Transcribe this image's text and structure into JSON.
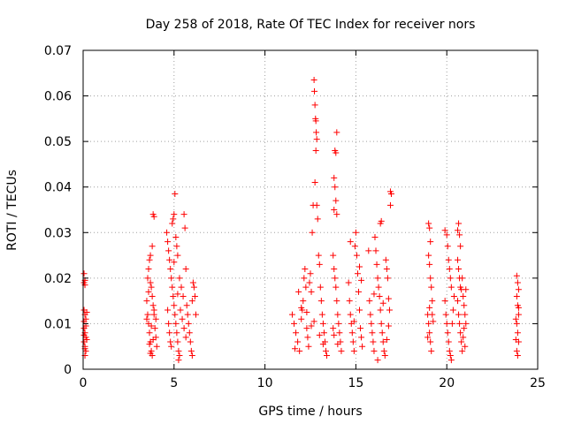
{
  "chart_data": {
    "type": "scatter",
    "title": "Day 258 of 2018, Rate Of TEC Index for receiver nors",
    "xlabel": "GPS time / hours",
    "ylabel": "ROTI / TECUs",
    "xlim": [
      0,
      25
    ],
    "ylim": [
      0,
      0.07
    ],
    "x_ticks": [
      0,
      5,
      10,
      15,
      20,
      25
    ],
    "y_ticks": [
      0,
      0.01,
      0.02,
      0.03,
      0.04,
      0.05,
      0.06,
      0.07
    ],
    "x_tick_labels": [
      "0",
      "5",
      "10",
      "15",
      "20",
      "25"
    ],
    "y_tick_labels": [
      "0",
      "0.01",
      "0.02",
      "0.03",
      "0.04",
      "0.05",
      "0.06",
      "0.07"
    ],
    "grid": true,
    "marker": "+",
    "marker_color": "#ff0000",
    "series": [
      {
        "name": "ROTI",
        "points": [
          [
            0.05,
            0.021
          ],
          [
            0.05,
            0.019
          ],
          [
            0.1,
            0.0195
          ],
          [
            0.1,
            0.0185
          ],
          [
            0.05,
            0.013
          ],
          [
            0.1,
            0.012
          ],
          [
            0.15,
            0.011
          ],
          [
            0.05,
            0.009
          ],
          [
            0.1,
            0.008
          ],
          [
            0.15,
            0.007
          ],
          [
            0.05,
            0.006
          ],
          [
            0.1,
            0.005
          ],
          [
            0.15,
            0.004
          ],
          [
            0.1,
            0.003
          ],
          [
            0.05,
            0.0105
          ],
          [
            0.2,
            0.0125
          ],
          [
            0.15,
            0.0095
          ],
          [
            0.2,
            0.0065
          ],
          [
            0.05,
            0.0075
          ],
          [
            0.1,
            0.0045
          ],
          [
            3.5,
            0.015
          ],
          [
            3.55,
            0.012
          ],
          [
            3.6,
            0.01
          ],
          [
            3.65,
            0.008
          ],
          [
            3.7,
            0.006
          ],
          [
            3.75,
            0.004
          ],
          [
            3.8,
            0.003
          ],
          [
            3.55,
            0.02
          ],
          [
            3.6,
            0.022
          ],
          [
            3.65,
            0.024
          ],
          [
            3.7,
            0.025
          ],
          [
            3.75,
            0.018
          ],
          [
            3.8,
            0.016
          ],
          [
            3.85,
            0.014
          ],
          [
            3.9,
            0.012
          ],
          [
            3.85,
            0.034
          ],
          [
            3.9,
            0.0335
          ],
          [
            3.8,
            0.027
          ],
          [
            3.7,
            0.019
          ],
          [
            3.6,
            0.017
          ],
          [
            3.95,
            0.009
          ],
          [
            4.0,
            0.007
          ],
          [
            4.05,
            0.005
          ],
          [
            3.5,
            0.011
          ],
          [
            3.9,
            0.013
          ],
          [
            4.0,
            0.011
          ],
          [
            3.75,
            0.0095
          ],
          [
            3.65,
            0.0055
          ],
          [
            3.85,
            0.0065
          ],
          [
            3.7,
            0.0035
          ],
          [
            4.6,
            0.03
          ],
          [
            4.65,
            0.028
          ],
          [
            4.7,
            0.026
          ],
          [
            4.75,
            0.024
          ],
          [
            4.8,
            0.022
          ],
          [
            4.85,
            0.02
          ],
          [
            4.9,
            0.018
          ],
          [
            4.95,
            0.016
          ],
          [
            5.0,
            0.014
          ],
          [
            5.05,
            0.012
          ],
          [
            5.1,
            0.01
          ],
          [
            5.15,
            0.008
          ],
          [
            5.2,
            0.006
          ],
          [
            5.25,
            0.004
          ],
          [
            5.3,
            0.003
          ],
          [
            4.9,
            0.032
          ],
          [
            4.95,
            0.033
          ],
          [
            5.0,
            0.034
          ],
          [
            5.05,
            0.0385
          ],
          [
            5.1,
            0.029
          ],
          [
            5.15,
            0.027
          ],
          [
            5.2,
            0.025
          ],
          [
            5.3,
            0.02
          ],
          [
            5.4,
            0.018
          ],
          [
            5.5,
            0.016
          ],
          [
            5.55,
            0.034
          ],
          [
            5.6,
            0.031
          ],
          [
            5.65,
            0.022
          ],
          [
            5.7,
            0.014
          ],
          [
            5.75,
            0.012
          ],
          [
            5.8,
            0.01
          ],
          [
            5.85,
            0.008
          ],
          [
            5.9,
            0.006
          ],
          [
            5.95,
            0.004
          ],
          [
            6.0,
            0.003
          ],
          [
            6.05,
            0.019
          ],
          [
            6.1,
            0.018
          ],
          [
            6.15,
            0.016
          ],
          [
            6.2,
            0.012
          ],
          [
            6.0,
            0.015
          ],
          [
            4.7,
            0.01
          ],
          [
            4.75,
            0.008
          ],
          [
            4.8,
            0.006
          ],
          [
            4.85,
            0.005
          ],
          [
            5.35,
            0.013
          ],
          [
            5.45,
            0.011
          ],
          [
            5.55,
            0.009
          ],
          [
            5.65,
            0.007
          ],
          [
            5.25,
            0.002
          ],
          [
            4.65,
            0.013
          ],
          [
            5.0,
            0.0235
          ],
          [
            5.2,
            0.0165
          ],
          [
            11.5,
            0.012
          ],
          [
            11.6,
            0.01
          ],
          [
            11.7,
            0.008
          ],
          [
            11.8,
            0.006
          ],
          [
            11.9,
            0.004
          ],
          [
            12.0,
            0.011
          ],
          [
            12.05,
            0.013
          ],
          [
            12.1,
            0.015
          ],
          [
            12.15,
            0.02
          ],
          [
            12.2,
            0.022
          ],
          [
            12.25,
            0.018
          ],
          [
            12.3,
            0.009
          ],
          [
            12.35,
            0.007
          ],
          [
            12.4,
            0.005
          ],
          [
            12.45,
            0.019
          ],
          [
            12.5,
            0.021
          ],
          [
            12.55,
            0.017
          ],
          [
            12.6,
            0.03
          ],
          [
            12.65,
            0.036
          ],
          [
            12.7,
            0.0635
          ],
          [
            12.72,
            0.061
          ],
          [
            12.75,
            0.058
          ],
          [
            12.78,
            0.055
          ],
          [
            12.8,
            0.0545
          ],
          [
            12.82,
            0.052
          ],
          [
            12.85,
            0.0505
          ],
          [
            12.8,
            0.048
          ],
          [
            12.75,
            0.041
          ],
          [
            12.85,
            0.036
          ],
          [
            12.9,
            0.033
          ],
          [
            12.95,
            0.025
          ],
          [
            13.0,
            0.023
          ],
          [
            13.05,
            0.018
          ],
          [
            13.1,
            0.015
          ],
          [
            13.15,
            0.012
          ],
          [
            13.2,
            0.01
          ],
          [
            13.25,
            0.008
          ],
          [
            13.3,
            0.006
          ],
          [
            13.35,
            0.004
          ],
          [
            13.4,
            0.003
          ],
          [
            11.85,
            0.017
          ],
          [
            12.0,
            0.0135
          ],
          [
            12.3,
            0.0125
          ],
          [
            12.55,
            0.0095
          ],
          [
            12.7,
            0.0105
          ],
          [
            13.0,
            0.0075
          ],
          [
            13.2,
            0.0055
          ],
          [
            11.65,
            0.0045
          ],
          [
            13.85,
            0.048
          ],
          [
            13.9,
            0.0475
          ],
          [
            13.95,
            0.052
          ],
          [
            13.8,
            0.042
          ],
          [
            13.85,
            0.04
          ],
          [
            13.9,
            0.037
          ],
          [
            13.8,
            0.035
          ],
          [
            13.95,
            0.034
          ],
          [
            13.75,
            0.025
          ],
          [
            13.8,
            0.022
          ],
          [
            13.85,
            0.02
          ],
          [
            13.9,
            0.018
          ],
          [
            13.95,
            0.015
          ],
          [
            14.0,
            0.012
          ],
          [
            14.05,
            0.01
          ],
          [
            14.1,
            0.008
          ],
          [
            14.15,
            0.006
          ],
          [
            14.2,
            0.004
          ],
          [
            13.75,
            0.009
          ],
          [
            13.8,
            0.0075
          ],
          [
            14.0,
            0.0055
          ],
          [
            14.6,
            0.019
          ],
          [
            14.65,
            0.015
          ],
          [
            14.7,
            0.012
          ],
          [
            14.75,
            0.01
          ],
          [
            14.8,
            0.008
          ],
          [
            14.85,
            0.006
          ],
          [
            14.9,
            0.004
          ],
          [
            14.95,
            0.027
          ],
          [
            15.0,
            0.03
          ],
          [
            15.05,
            0.025
          ],
          [
            15.1,
            0.021
          ],
          [
            15.15,
            0.017
          ],
          [
            15.2,
            0.013
          ],
          [
            15.25,
            0.009
          ],
          [
            15.3,
            0.007
          ],
          [
            15.35,
            0.005
          ],
          [
            14.7,
            0.028
          ],
          [
            15.2,
            0.0225
          ],
          [
            15.3,
            0.0195
          ],
          [
            14.9,
            0.0105
          ],
          [
            15.7,
            0.026
          ],
          [
            15.75,
            0.015
          ],
          [
            15.8,
            0.012
          ],
          [
            15.85,
            0.01
          ],
          [
            15.9,
            0.008
          ],
          [
            15.95,
            0.006
          ],
          [
            16.0,
            0.004
          ],
          [
            16.05,
            0.029
          ],
          [
            16.1,
            0.026
          ],
          [
            16.15,
            0.023
          ],
          [
            16.2,
            0.02
          ],
          [
            16.25,
            0.018
          ],
          [
            16.3,
            0.016
          ],
          [
            16.35,
            0.013
          ],
          [
            16.4,
            0.01
          ],
          [
            16.45,
            0.008
          ],
          [
            16.5,
            0.006
          ],
          [
            16.55,
            0.004
          ],
          [
            16.6,
            0.003
          ],
          [
            16.35,
            0.032
          ],
          [
            16.4,
            0.0325
          ],
          [
            16.65,
            0.024
          ],
          [
            16.7,
            0.022
          ],
          [
            16.75,
            0.02
          ],
          [
            16.8,
            0.0155
          ],
          [
            16.85,
            0.013
          ],
          [
            16.9,
            0.036
          ],
          [
            16.95,
            0.0385
          ],
          [
            16.9,
            0.039
          ],
          [
            16.2,
            0.002
          ],
          [
            16.0,
            0.0165
          ],
          [
            16.5,
            0.0145
          ],
          [
            16.8,
            0.0095
          ],
          [
            16.7,
            0.0065
          ],
          [
            19.0,
            0.032
          ],
          [
            19.05,
            0.031
          ],
          [
            19.1,
            0.028
          ],
          [
            19.0,
            0.025
          ],
          [
            19.05,
            0.023
          ],
          [
            19.1,
            0.02
          ],
          [
            19.15,
            0.018
          ],
          [
            19.2,
            0.015
          ],
          [
            18.95,
            0.012
          ],
          [
            19.0,
            0.01
          ],
          [
            19.05,
            0.008
          ],
          [
            19.1,
            0.006
          ],
          [
            19.15,
            0.004
          ],
          [
            19.2,
            0.012
          ],
          [
            19.25,
            0.0105
          ],
          [
            18.95,
            0.007
          ],
          [
            19.05,
            0.0135
          ],
          [
            19.9,
            0.0305
          ],
          [
            20.0,
            0.0295
          ],
          [
            20.05,
            0.027
          ],
          [
            20.1,
            0.024
          ],
          [
            20.15,
            0.022
          ],
          [
            20.2,
            0.02
          ],
          [
            20.25,
            0.018
          ],
          [
            19.9,
            0.015
          ],
          [
            19.95,
            0.012
          ],
          [
            20.0,
            0.01
          ],
          [
            20.05,
            0.008
          ],
          [
            20.1,
            0.006
          ],
          [
            20.15,
            0.004
          ],
          [
            20.2,
            0.003
          ],
          [
            20.25,
            0.002
          ],
          [
            20.3,
            0.01
          ],
          [
            20.35,
            0.013
          ],
          [
            20.4,
            0.016
          ],
          [
            20.6,
            0.0305
          ],
          [
            20.65,
            0.032
          ],
          [
            20.7,
            0.0295
          ],
          [
            20.75,
            0.027
          ],
          [
            20.6,
            0.024
          ],
          [
            20.65,
            0.022
          ],
          [
            20.7,
            0.02
          ],
          [
            20.75,
            0.018
          ],
          [
            20.8,
            0.0175
          ],
          [
            20.85,
            0.02
          ],
          [
            20.9,
            0.016
          ],
          [
            20.95,
            0.014
          ],
          [
            21.0,
            0.012
          ],
          [
            21.05,
            0.01
          ],
          [
            20.6,
            0.015
          ],
          [
            20.65,
            0.012
          ],
          [
            20.7,
            0.01
          ],
          [
            20.75,
            0.008
          ],
          [
            20.8,
            0.006
          ],
          [
            20.85,
            0.004
          ],
          [
            20.9,
            0.007
          ],
          [
            20.95,
            0.009
          ],
          [
            21.0,
            0.005
          ],
          [
            21.05,
            0.0175
          ],
          [
            23.85,
            0.0205
          ],
          [
            23.9,
            0.019
          ],
          [
            23.95,
            0.0175
          ],
          [
            23.85,
            0.016
          ],
          [
            23.9,
            0.014
          ],
          [
            23.95,
            0.012
          ],
          [
            23.85,
            0.01
          ],
          [
            23.9,
            0.008
          ],
          [
            23.95,
            0.006
          ],
          [
            23.85,
            0.004
          ],
          [
            23.9,
            0.003
          ],
          [
            23.95,
            0.0135
          ],
          [
            23.8,
            0.011
          ],
          [
            23.8,
            0.0065
          ]
        ]
      }
    ]
  }
}
